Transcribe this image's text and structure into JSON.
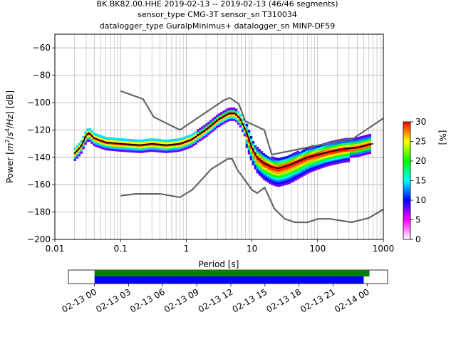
{
  "title_lines": [
    "BK.BK82.00.HHE   2019-02-13 -- 2019-02-13  (46/46 segments)",
    "sensor_type CMG-3T sensor_sn T310034",
    "datalogger_type GuralpMinimus+ datalogger_sn MINP-DF59"
  ],
  "chart_data": {
    "type": "heatmap",
    "xlabel": "Period [s]",
    "ylabel_parts": [
      "Power [",
      "m",
      "2",
      "/",
      "s",
      "4",
      "/",
      "Hz",
      "] [dB]"
    ],
    "x_scale": "log",
    "xlim": [
      0.01,
      1000
    ],
    "ylim": [
      -200,
      -50
    ],
    "x_ticks": [
      {
        "v": 0.01,
        "label": "0.01"
      },
      {
        "v": 0.1,
        "label": "0.1"
      },
      {
        "v": 1,
        "label": "1"
      },
      {
        "v": 10,
        "label": "10"
      },
      {
        "v": 100,
        "label": "100"
      },
      {
        "v": 1000,
        "label": "1000"
      }
    ],
    "y_ticks": [
      {
        "v": -60,
        "label": "−60"
      },
      {
        "v": -80,
        "label": "−80"
      },
      {
        "v": -100,
        "label": "−100"
      },
      {
        "v": -120,
        "label": "−120"
      },
      {
        "v": -140,
        "label": "−140"
      },
      {
        "v": -160,
        "label": "−160"
      },
      {
        "v": -180,
        "label": "−180"
      },
      {
        "v": -200,
        "label": "−200"
      }
    ],
    "grid": true,
    "nhnm": [
      [
        0.1,
        -168
      ],
      [
        0.17,
        -166.7
      ],
      [
        0.4,
        -166.7
      ],
      [
        0.8,
        -169.2
      ],
      [
        1.24,
        -163.7
      ],
      [
        2.4,
        -148.6
      ],
      [
        4.3,
        -141.1
      ],
      [
        5,
        -141.1
      ],
      [
        6,
        -149
      ],
      [
        10,
        -163.8
      ],
      [
        12,
        -166.2
      ],
      [
        15.6,
        -162.1
      ],
      [
        21.9,
        -177.5
      ],
      [
        31.6,
        -185
      ],
      [
        45,
        -187.5
      ],
      [
        70,
        -187.5
      ],
      [
        101,
        -185
      ],
      [
        154,
        -185
      ],
      [
        328,
        -187.5
      ],
      [
        600,
        -184.4
      ],
      [
        1000,
        -178
      ]
    ],
    "nlnm": [
      [
        0.1,
        -91.5
      ],
      [
        0.22,
        -97.4
      ],
      [
        0.32,
        -110.5
      ],
      [
        0.8,
        -120
      ],
      [
        3.8,
        -98
      ],
      [
        4.6,
        -96.5
      ],
      [
        6.3,
        -101
      ],
      [
        7.9,
        -113.5
      ],
      [
        15.4,
        -120
      ],
      [
        20,
        -138
      ],
      [
        354.8,
        -126
      ],
      [
        1000,
        -111.5
      ]
    ],
    "mode_line": [
      [
        0.02,
        -137
      ],
      [
        0.025,
        -132
      ],
      [
        0.03,
        -124
      ],
      [
        0.033,
        -122
      ],
      [
        0.04,
        -126
      ],
      [
        0.06,
        -129
      ],
      [
        0.1,
        -130
      ],
      [
        0.2,
        -131
      ],
      [
        0.3,
        -130
      ],
      [
        0.5,
        -131
      ],
      [
        0.8,
        -130
      ],
      [
        1.2,
        -127
      ],
      [
        2,
        -120
      ],
      [
        3,
        -113
      ],
      [
        4.5,
        -108
      ],
      [
        5.5,
        -108
      ],
      [
        6.5,
        -111
      ],
      [
        8,
        -120
      ],
      [
        10,
        -133
      ],
      [
        12,
        -140
      ],
      [
        15,
        -144
      ],
      [
        20,
        -147
      ],
      [
        25,
        -148
      ],
      [
        35,
        -146
      ],
      [
        50,
        -143
      ],
      [
        70,
        -140
      ],
      [
        100,
        -138
      ],
      [
        150,
        -136
      ],
      [
        250,
        -134
      ],
      [
        400,
        -133
      ],
      [
        700,
        -130
      ]
    ],
    "colorbar": {
      "label": "[%]",
      "range": [
        0,
        30
      ],
      "ticks": [
        {
          "v": 0,
          "label": "0"
        },
        {
          "v": 5,
          "label": "5"
        },
        {
          "v": 10,
          "label": "10"
        },
        {
          "v": 15,
          "label": "15"
        },
        {
          "v": 20,
          "label": "20"
        },
        {
          "v": 25,
          "label": "25"
        },
        {
          "v": 30,
          "label": "30"
        }
      ],
      "colors": [
        "#ffffff",
        "#ff00ff",
        "#0000ff",
        "#00ffff",
        "#00ff00",
        "#ffff00",
        "#ff0000"
      ]
    }
  },
  "timeline": {
    "tick_labels": [
      "02-13 00",
      "02-13 03",
      "02-13 06",
      "02-13 09",
      "02-13 12",
      "02-13 15",
      "02-13 18",
      "02-13 21",
      "02-14 00"
    ],
    "data_bar_color": "#008000",
    "psd_bar_color": "#0000ff",
    "xlim_hours": [
      -2.3,
      25.8
    ],
    "data_bar": [
      0,
      24.2
    ],
    "psd_bar": [
      0,
      23.7
    ]
  }
}
